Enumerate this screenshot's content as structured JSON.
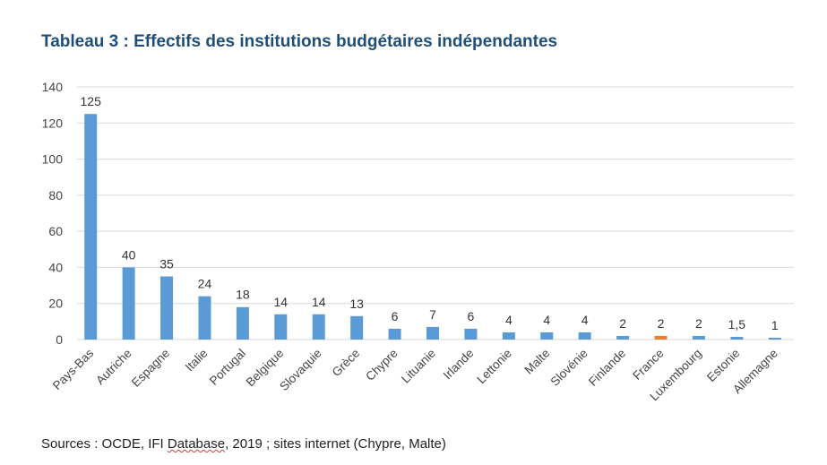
{
  "chart_data": {
    "type": "bar",
    "title": "Tableau 3 : Effectifs des institutions budgétaires indépendantes",
    "categories": [
      "Pays-Bas",
      "Autriche",
      "Espagne",
      "Italie",
      "Portugal",
      "Belgique",
      "Slovaquie",
      "Grèce",
      "Chypre",
      "Lituanie",
      "Irlande",
      "Lettonie",
      "Malte",
      "Slovénie",
      "Finlande",
      "France",
      "Luxembourg",
      "Estonie",
      "Allemagne"
    ],
    "values": [
      125,
      40,
      35,
      24,
      18,
      14,
      14,
      13,
      6,
      7,
      6,
      4,
      4,
      4,
      2,
      2,
      2,
      1.5,
      1
    ],
    "data_labels": [
      "125",
      "40",
      "35",
      "24",
      "18",
      "14",
      "14",
      "13",
      "6",
      "7",
      "6",
      "4",
      "4",
      "4",
      "2",
      "2",
      "2",
      "1,5",
      "1"
    ],
    "highlight_category": "France",
    "ylim": [
      0,
      140
    ],
    "yticks": [
      0,
      20,
      40,
      60,
      80,
      100,
      120,
      140
    ],
    "grid": true,
    "xlabel": "",
    "ylabel": "",
    "colors": {
      "bar": "#5b9bd5",
      "highlight": "#ed7d31",
      "grid": "#d9d9d9",
      "title": "#1f4e79"
    }
  },
  "source": {
    "prefix": "Sources : OCDE, IFI ",
    "underlined": "Database",
    "suffix": ", 2019 ; sites internet (Chypre, Malte)"
  }
}
